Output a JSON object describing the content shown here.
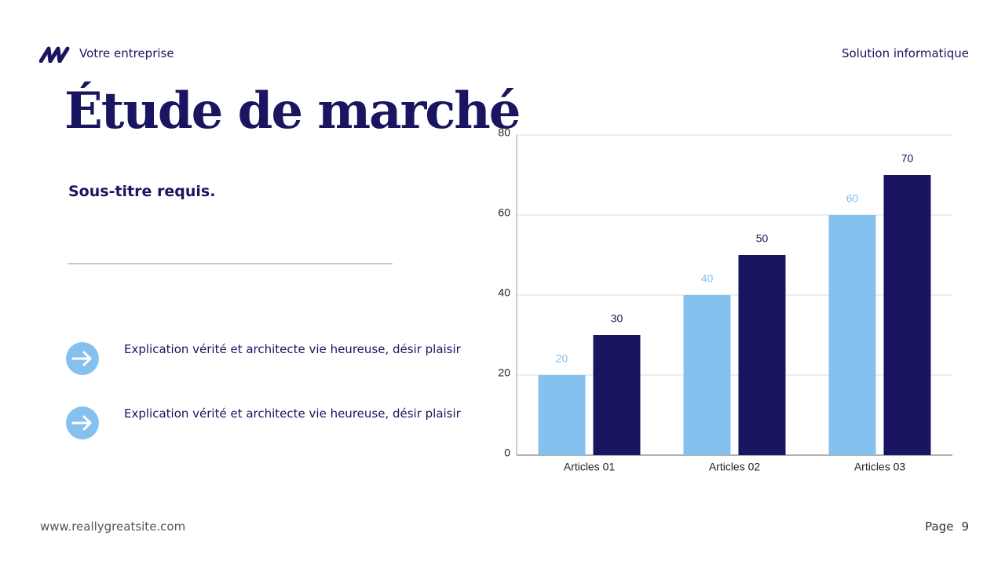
{
  "header": {
    "company": "Votre entreprise",
    "topic": "Solution informatique"
  },
  "title": "Étude de marché",
  "subtitle": "Sous-titre requis.",
  "bullets": [
    "Explication vérité et architecte vie heureuse, désir plaisir",
    "Explication vérité et architecte vie heureuse, désir plaisir"
  ],
  "footer": {
    "website": "www.reallygreatsite.com",
    "page_label": "Page",
    "page_number": 9
  },
  "chart_data": {
    "type": "bar",
    "categories": [
      "Articles 01",
      "Articles 02",
      "Articles 03"
    ],
    "series": [
      {
        "color": "#85c1ee",
        "values": [
          20,
          40,
          60
        ]
      },
      {
        "color": "#1a1560",
        "values": [
          30,
          50,
          70
        ]
      }
    ],
    "ylim": [
      0,
      80
    ],
    "yticks": [
      0,
      20,
      40,
      60,
      80
    ],
    "grid": true
  }
}
